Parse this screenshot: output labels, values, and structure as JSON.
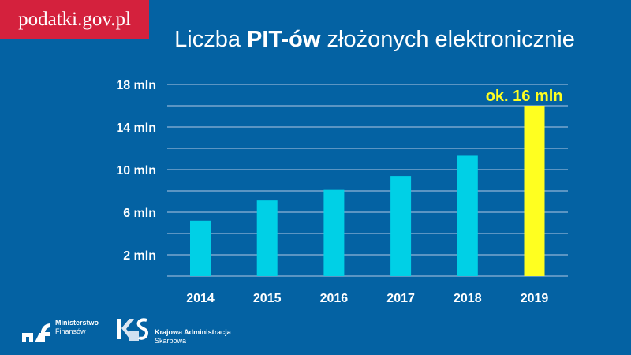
{
  "brand": "podatki.gov.pl",
  "title": {
    "pre": "Liczba ",
    "bold": "PIT-ów",
    "post": " złożonych elektronicznie"
  },
  "chart_data": {
    "type": "bar",
    "title": "Liczba PIT-ów złożonych elektronicznie",
    "categories": [
      "2014",
      "2015",
      "2016",
      "2017",
      "2018",
      "2019"
    ],
    "values": [
      5.2,
      7.1,
      8.1,
      9.4,
      11.3,
      16
    ],
    "unit": "mln",
    "ylim": [
      0,
      18
    ],
    "yticks": [
      2,
      6,
      10,
      14,
      18
    ],
    "ytick_labels": [
      "2 mln",
      "6 mln",
      "10 mln",
      "14 mln",
      "18 mln"
    ],
    "grid": true,
    "gridline_step": 2,
    "colors": {
      "default": "#00d0e6",
      "highlight": "#ffff20"
    },
    "highlight_index": 5,
    "annotation": "ok. 16 mln"
  },
  "footer": {
    "mf": {
      "line1": "Ministerstwo",
      "line2": "Finansów"
    },
    "kas": {
      "line1": "Krajowa Administracja",
      "line2": "Skarbowa"
    }
  }
}
